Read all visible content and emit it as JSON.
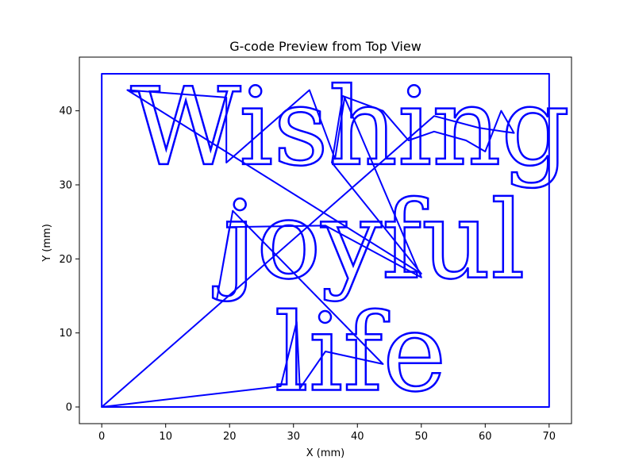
{
  "chart_data": {
    "type": "line",
    "title": "G-code Preview from Top View",
    "xlabel": "X (mm)",
    "ylabel": "Y (mm)",
    "xlim": [
      -3.5,
      73.5
    ],
    "ylim": [
      -2.25,
      47.25
    ],
    "xticks": [
      0,
      10,
      20,
      30,
      40,
      50,
      60,
      70
    ],
    "yticks": [
      0,
      10,
      20,
      30,
      40
    ],
    "grid": false,
    "line_color": "#0000ff",
    "series": [
      {
        "points": [
          [
            0,
            0
          ],
          [
            70,
            0
          ],
          [
            70,
            45
          ],
          [
            0,
            45
          ],
          [
            0,
            0
          ]
        ]
      },
      {
        "points": [
          [
            0,
            0
          ],
          [
            28,
            2.8
          ],
          [
            30.5,
            11.5
          ],
          [
            31,
            2.5
          ],
          [
            35,
            7.5
          ],
          [
            44,
            5.8
          ],
          [
            20.5,
            26.5
          ],
          [
            18,
            14.5
          ],
          [
            20,
            24.3
          ],
          [
            35,
            24.5
          ],
          [
            50,
            17.5
          ],
          [
            38,
            41.8
          ],
          [
            36.5,
            33.5
          ],
          [
            32.5,
            42.8
          ],
          [
            19.5,
            33
          ],
          [
            19.5,
            41.8
          ],
          [
            4,
            42.8
          ],
          [
            50,
            18
          ],
          [
            36,
            33
          ],
          [
            37.7,
            42
          ],
          [
            44,
            40
          ],
          [
            48,
            36
          ],
          [
            52,
            37.2
          ],
          [
            57,
            36
          ],
          [
            60,
            34.5
          ],
          [
            62.5,
            40
          ],
          [
            64.5,
            37
          ],
          [
            59,
            37.7
          ],
          [
            52,
            39.3
          ],
          [
            0,
            0
          ]
        ]
      }
    ],
    "text_paths": [
      {
        "text": "Wishing a",
        "x": 4.5,
        "y": 32.8
      },
      {
        "text": "joyful",
        "x": 19,
        "y": 17.5
      },
      {
        "text": "life",
        "x": 27,
        "y": 2.3
      }
    ]
  }
}
